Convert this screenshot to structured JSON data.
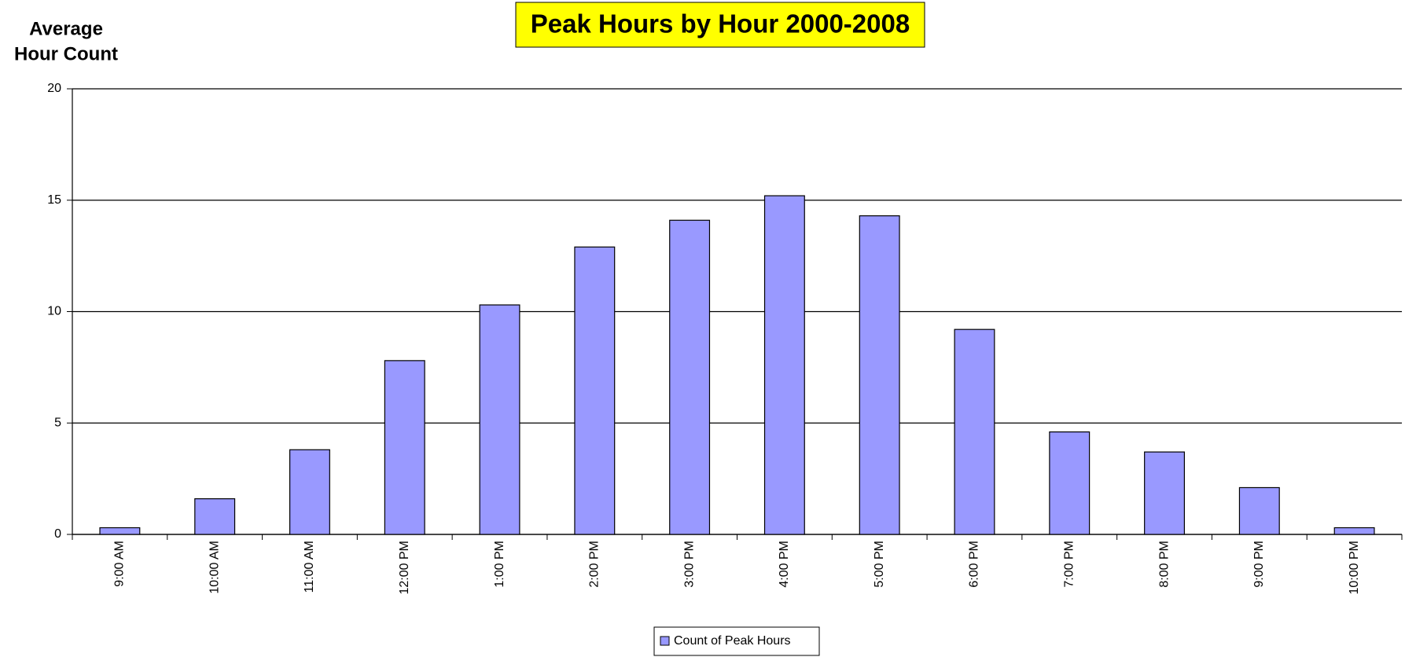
{
  "chart_data": {
    "type": "bar",
    "title": "Peak Hours by Hour 2000-2008",
    "ylabel": [
      "Average",
      "Hour Count"
    ],
    "categories": [
      "9:00 AM",
      "10:00 AM",
      "11:00 AM",
      "12:00 PM",
      "1:00 PM",
      "2:00 PM",
      "3:00 PM",
      "4:00 PM",
      "5:00 PM",
      "6:00 PM",
      "7:00 PM",
      "8:00 PM",
      "9:00 PM",
      "10:00 PM"
    ],
    "series": [
      {
        "name": "Count of Peak Hours",
        "color": "#9999ff",
        "values": [
          0.3,
          1.6,
          3.8,
          7.8,
          10.3,
          12.9,
          14.1,
          15.2,
          14.3,
          9.2,
          4.6,
          3.7,
          2.1,
          0.3
        ]
      }
    ],
    "ylim": [
      0,
      20
    ],
    "yticks": [
      0,
      5,
      10,
      15,
      20
    ],
    "grid": true,
    "legend": "bottom"
  }
}
